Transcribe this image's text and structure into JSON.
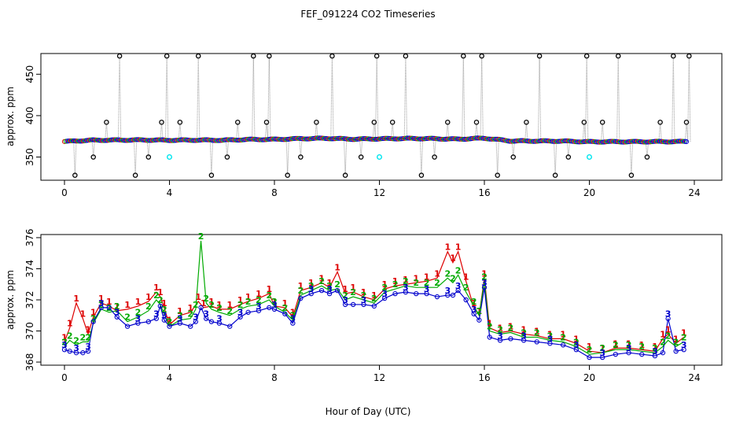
{
  "chart_data": {
    "type": "line",
    "title": "FEF_091224  CO2 Timeseries",
    "xlabel": "Hour of Day (UTC)",
    "xlim": [
      0,
      24
    ],
    "xticks": [
      0,
      4,
      8,
      12,
      16,
      20,
      24
    ],
    "panels": [
      {
        "name": "top",
        "ylabel": "approx. ppm",
        "ylim": [
          322,
          475
        ],
        "yticks": [
          350,
          400,
          450
        ],
        "series": [
          {
            "name": "cal-spikes",
            "color": "#000000",
            "x": [
              0.4,
              1.1,
              1.6,
              2.1,
              2.7,
              3.2,
              3.7,
              3.9,
              4.4,
              5.1,
              5.6,
              6.2,
              6.6,
              7.2,
              7.7,
              7.8,
              8.5,
              9.0,
              9.6,
              10.2,
              10.7,
              11.3,
              11.8,
              11.9,
              12.5,
              13.0,
              13.6,
              14.1,
              14.6,
              15.2,
              15.7,
              15.9,
              16.5,
              17.1,
              17.6,
              18.1,
              18.7,
              19.2,
              19.8,
              19.9,
              20.5,
              21.1,
              21.6,
              22.2,
              22.7,
              23.2,
              23.7,
              23.8
            ],
            "values": [
              328,
              350,
              392,
              472,
              328,
              350,
              392,
              472,
              392,
              472,
              328,
              350,
              392,
              472,
              392,
              472,
              328,
              350,
              392,
              472,
              328,
              350,
              392,
              472,
              392,
              472,
              328,
              350,
              392,
              472,
              392,
              472,
              328,
              350,
              392,
              472,
              328,
              350,
              392,
              472,
              392,
              472,
              328,
              350,
              392,
              472,
              392,
              472
            ]
          },
          {
            "name": "3",
            "color": "#0000cc",
            "x": [
              0.0,
              1.0,
              2.0,
              3.0,
              4.0,
              5.0,
              6.0,
              7.0,
              8.0,
              9.0,
              10.0,
              11.0,
              12.0,
              13.0,
              14.0,
              15.0,
              16.0,
              17.0,
              18.0,
              19.0,
              20.0,
              21.0,
              22.0,
              23.0,
              23.7
            ],
            "values": [
              368.7,
              370.3,
              370.5,
              370.6,
              370.3,
              370.5,
              370.3,
              371.2,
              371.3,
              372.2,
              372.6,
              371.6,
              372.0,
              372.4,
              372.2,
              371.6,
              372.8,
              369.4,
              369.3,
              369.2,
              368.4,
              368.5,
              368.5,
              368.6,
              368.7
            ]
          }
        ],
        "markers": [
          {
            "name": "cyan-flag-1",
            "color": "#00e5ee",
            "x": 4.0,
            "y": 350
          },
          {
            "name": "cyan-flag-2",
            "color": "#00e5ee",
            "x": 12.0,
            "y": 350
          },
          {
            "name": "cyan-flag-3",
            "color": "#00e5ee",
            "x": 20.0,
            "y": 350
          }
        ]
      },
      {
        "name": "bottom",
        "ylabel": "approx. ppm",
        "ylim": [
          367.8,
          376.2
        ],
        "yticks": [
          368,
          370,
          372,
          374,
          376
        ],
        "series": [
          {
            "name": "1",
            "color": "#dd0000",
            "x": [
              0.0,
              0.2,
              0.45,
              0.7,
              0.9,
              1.1,
              1.4,
              1.7,
              2.0,
              2.4,
              2.8,
              3.2,
              3.5,
              3.65,
              3.8,
              4.0,
              4.4,
              4.8,
              5.1,
              5.3,
              5.6,
              5.9,
              6.3,
              6.7,
              7.0,
              7.4,
              7.8,
              8.0,
              8.4,
              8.7,
              9.0,
              9.4,
              9.8,
              10.1,
              10.4,
              10.7,
              11.0,
              11.4,
              11.8,
              12.2,
              12.6,
              13.0,
              13.4,
              13.8,
              14.2,
              14.6,
              14.8,
              15.0,
              15.3,
              15.6,
              15.8,
              16.0,
              16.2,
              16.6,
              17.0,
              17.5,
              18.0,
              18.5,
              19.0,
              19.5,
              20.0,
              20.5,
              21.0,
              21.5,
              22.0,
              22.5,
              22.8,
              23.0,
              23.3,
              23.6
            ],
            "values": [
              369.3,
              370.2,
              371.8,
              370.8,
              369.8,
              370.9,
              371.8,
              371.6,
              371.3,
              371.4,
              371.6,
              371.9,
              372.5,
              372.2,
              371.5,
              370.4,
              371.0,
              371.2,
              371.9,
              371.5,
              371.6,
              371.4,
              371.4,
              371.7,
              371.9,
              372.1,
              372.4,
              371.6,
              371.5,
              370.9,
              372.6,
              372.8,
              373.1,
              372.8,
              373.8,
              372.4,
              372.5,
              372.2,
              372.0,
              372.7,
              372.9,
              373.0,
              373.1,
              373.2,
              373.4,
              375.1,
              374.4,
              375.1,
              373.2,
              371.5,
              371.0,
              373.4,
              370.2,
              369.9,
              370.0,
              369.8,
              369.7,
              369.5,
              369.5,
              369.2,
              368.7,
              368.6,
              368.9,
              368.9,
              368.8,
              368.7,
              369.5,
              369.8,
              369.2,
              369.6
            ]
          },
          {
            "name": "2",
            "color": "#00aa00",
            "x": [
              0.0,
              0.2,
              0.45,
              0.7,
              0.9,
              1.1,
              1.4,
              1.7,
              2.0,
              2.4,
              2.8,
              3.2,
              3.5,
              3.65,
              3.8,
              4.0,
              4.4,
              4.8,
              5.0,
              5.2,
              5.4,
              5.6,
              5.9,
              6.3,
              6.7,
              7.0,
              7.4,
              7.8,
              8.0,
              8.4,
              8.7,
              9.0,
              9.4,
              9.8,
              10.1,
              10.4,
              10.7,
              11.0,
              11.4,
              11.8,
              12.2,
              12.6,
              13.0,
              13.4,
              13.8,
              14.2,
              14.6,
              14.8,
              15.0,
              15.3,
              15.6,
              15.8,
              16.0,
              16.2,
              16.6,
              17.0,
              17.5,
              18.0,
              18.5,
              19.0,
              19.5,
              20.0,
              20.5,
              21.0,
              21.5,
              22.0,
              22.5,
              22.8,
              23.0,
              23.3,
              23.6
            ],
            "values": [
              369.0,
              369.4,
              369.1,
              369.3,
              369.3,
              370.5,
              371.4,
              371.2,
              371.3,
              370.6,
              370.9,
              371.3,
              372.0,
              371.7,
              371.1,
              370.3,
              370.7,
              370.8,
              371.4,
              375.8,
              371.8,
              371.4,
              371.2,
              371.0,
              371.4,
              371.6,
              371.7,
              372.0,
              371.6,
              371.2,
              370.7,
              372.3,
              372.6,
              372.9,
              372.6,
              372.7,
              372.0,
              372.2,
              372.0,
              371.8,
              372.5,
              372.7,
              372.9,
              372.8,
              372.8,
              372.8,
              373.4,
              373.1,
              373.6,
              372.5,
              371.6,
              371.0,
              373.2,
              370.0,
              369.8,
              369.9,
              369.6,
              369.6,
              369.4,
              369.3,
              369.0,
              368.5,
              368.6,
              368.8,
              368.8,
              368.7,
              368.6,
              369.0,
              369.4,
              369.0,
              369.3
            ]
          },
          {
            "name": "3",
            "color": "#0000cc",
            "x": [
              0.0,
              0.2,
              0.45,
              0.7,
              0.9,
              1.1,
              1.4,
              1.7,
              2.0,
              2.4,
              2.8,
              3.2,
              3.5,
              3.65,
              3.8,
              4.0,
              4.4,
              4.8,
              5.0,
              5.2,
              5.4,
              5.6,
              5.9,
              6.3,
              6.7,
              7.0,
              7.4,
              7.8,
              8.0,
              8.4,
              8.7,
              9.0,
              9.4,
              9.8,
              10.1,
              10.4,
              10.7,
              11.0,
              11.4,
              11.8,
              12.2,
              12.6,
              13.0,
              13.4,
              13.8,
              14.2,
              14.6,
              14.8,
              15.0,
              15.3,
              15.6,
              15.8,
              16.0,
              16.2,
              16.6,
              17.0,
              17.5,
              18.0,
              18.5,
              19.0,
              19.5,
              20.0,
              20.5,
              21.0,
              21.5,
              22.0,
              22.5,
              22.8,
              23.0,
              23.3,
              23.6
            ],
            "values": [
              368.8,
              368.7,
              368.6,
              368.6,
              368.7,
              370.6,
              371.5,
              371.5,
              370.9,
              370.3,
              370.5,
              370.6,
              370.8,
              371.6,
              370.7,
              370.3,
              370.5,
              370.3,
              370.6,
              371.5,
              370.8,
              370.6,
              370.5,
              370.3,
              370.9,
              371.2,
              371.3,
              371.5,
              371.4,
              371.1,
              370.5,
              372.1,
              372.4,
              372.6,
              372.4,
              372.6,
              371.7,
              371.7,
              371.7,
              371.6,
              372.1,
              372.4,
              372.5,
              372.4,
              372.4,
              372.2,
              372.3,
              372.3,
              372.6,
              372.0,
              371.1,
              370.7,
              372.8,
              369.6,
              369.4,
              369.5,
              369.4,
              369.3,
              369.2,
              369.1,
              368.8,
              368.3,
              368.3,
              368.5,
              368.6,
              368.5,
              368.4,
              368.6,
              370.8,
              368.7,
              368.8
            ]
          }
        ]
      }
    ]
  }
}
